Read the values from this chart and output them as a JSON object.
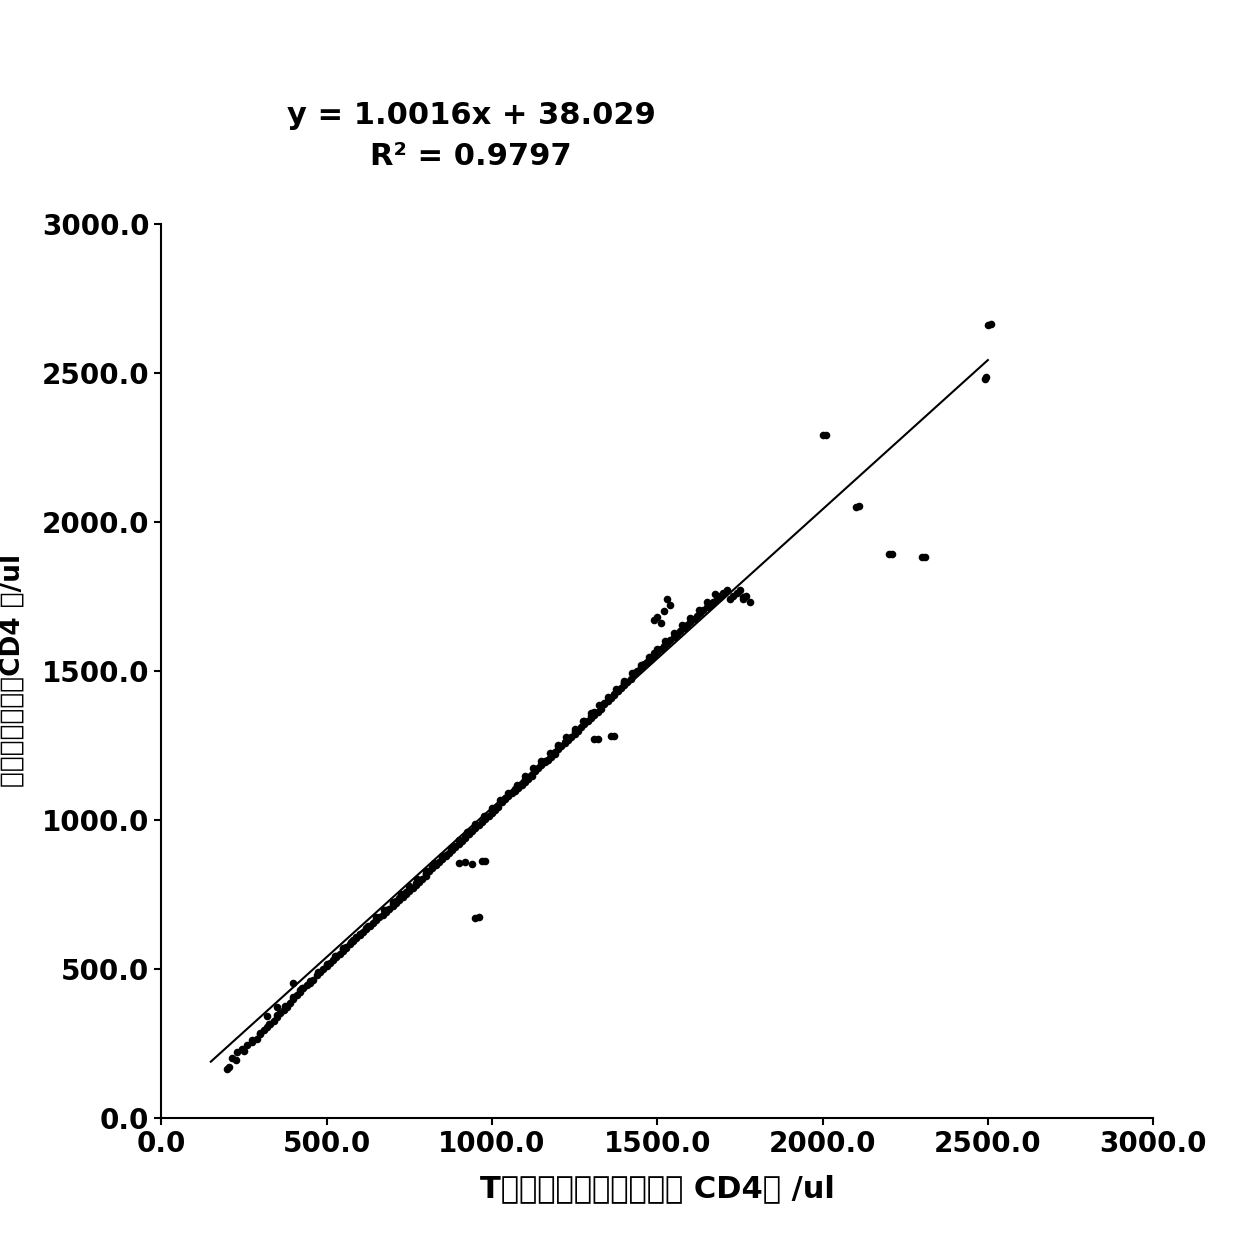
{
  "equation": "y = 1.0016x + 38.029",
  "r_squared": "R² = 0.9797",
  "slope": 1.0016,
  "intercept": 38.029,
  "xlabel": "T淋巴细胞试剂盒检测数 CD4个 /ul",
  "ylabel": "流式细胞检测数CD4 个/ul",
  "xlim": [
    0,
    3000
  ],
  "ylim": [
    0,
    3000
  ],
  "xticks": [
    0.0,
    500.0,
    1000.0,
    1500.0,
    2000.0,
    2500.0,
    3000.0
  ],
  "yticks": [
    0.0,
    500.0,
    1000.0,
    1500.0,
    2000.0,
    2500.0,
    3000.0
  ],
  "line_color": "#000000",
  "dot_color": "#000000",
  "background_color": "#ffffff",
  "scatter_points": [
    [
      200,
      165
    ],
    [
      215,
      200
    ],
    [
      230,
      220
    ],
    [
      245,
      230
    ],
    [
      260,
      245
    ],
    [
      275,
      260
    ],
    [
      290,
      265
    ],
    [
      300,
      280
    ],
    [
      310,
      295
    ],
    [
      320,
      305
    ],
    [
      330,
      315
    ],
    [
      340,
      325
    ],
    [
      350,
      338
    ],
    [
      360,
      350
    ],
    [
      370,
      362
    ],
    [
      380,
      372
    ],
    [
      390,
      385
    ],
    [
      400,
      398
    ],
    [
      410,
      412
    ],
    [
      420,
      422
    ],
    [
      430,
      434
    ],
    [
      440,
      444
    ],
    [
      450,
      453
    ],
    [
      460,
      463
    ],
    [
      470,
      478
    ],
    [
      480,
      488
    ],
    [
      490,
      498
    ],
    [
      500,
      508
    ],
    [
      510,
      518
    ],
    [
      520,
      528
    ],
    [
      530,
      538
    ],
    [
      540,
      548
    ],
    [
      550,
      558
    ],
    [
      560,
      568
    ],
    [
      570,
      582
    ],
    [
      580,
      592
    ],
    [
      590,
      602
    ],
    [
      600,
      612
    ],
    [
      610,
      622
    ],
    [
      620,
      632
    ],
    [
      630,
      642
    ],
    [
      640,
      652
    ],
    [
      650,
      662
    ],
    [
      660,
      672
    ],
    [
      670,
      682
    ],
    [
      680,
      692
    ],
    [
      690,
      702
    ],
    [
      700,
      712
    ],
    [
      710,
      722
    ],
    [
      720,
      732
    ],
    [
      730,
      742
    ],
    [
      740,
      752
    ],
    [
      750,
      762
    ],
    [
      760,
      772
    ],
    [
      770,
      782
    ],
    [
      780,
      792
    ],
    [
      790,
      802
    ],
    [
      800,
      818
    ],
    [
      810,
      828
    ],
    [
      820,
      838
    ],
    [
      830,
      848
    ],
    [
      840,
      858
    ],
    [
      850,
      868
    ],
    [
      860,
      878
    ],
    [
      870,
      888
    ],
    [
      880,
      898
    ],
    [
      890,
      908
    ],
    [
      900,
      918
    ],
    [
      910,
      928
    ],
    [
      920,
      938
    ],
    [
      930,
      952
    ],
    [
      940,
      962
    ],
    [
      950,
      972
    ],
    [
      960,
      982
    ],
    [
      970,
      992
    ],
    [
      980,
      1002
    ],
    [
      990,
      1012
    ],
    [
      1000,
      1022
    ],
    [
      1010,
      1032
    ],
    [
      1020,
      1042
    ],
    [
      1030,
      1058
    ],
    [
      1040,
      1068
    ],
    [
      1050,
      1078
    ],
    [
      1060,
      1088
    ],
    [
      1070,
      1098
    ],
    [
      1080,
      1108
    ],
    [
      1090,
      1118
    ],
    [
      1100,
      1128
    ],
    [
      1110,
      1138
    ],
    [
      1120,
      1148
    ],
    [
      1130,
      1162
    ],
    [
      1140,
      1172
    ],
    [
      1150,
      1182
    ],
    [
      1160,
      1192
    ],
    [
      1170,
      1202
    ],
    [
      1180,
      1212
    ],
    [
      1190,
      1222
    ],
    [
      1200,
      1238
    ],
    [
      1210,
      1248
    ],
    [
      1220,
      1258
    ],
    [
      1230,
      1268
    ],
    [
      1240,
      1278
    ],
    [
      1250,
      1288
    ],
    [
      1260,
      1298
    ],
    [
      1270,
      1312
    ],
    [
      1280,
      1322
    ],
    [
      1290,
      1332
    ],
    [
      1300,
      1342
    ],
    [
      1310,
      1352
    ],
    [
      1320,
      1362
    ],
    [
      1330,
      1372
    ],
    [
      1340,
      1388
    ],
    [
      1350,
      1398
    ],
    [
      1360,
      1408
    ],
    [
      1370,
      1418
    ],
    [
      1380,
      1432
    ],
    [
      1390,
      1442
    ],
    [
      1400,
      1452
    ],
    [
      1410,
      1462
    ],
    [
      1420,
      1472
    ],
    [
      1430,
      1488
    ],
    [
      1440,
      1498
    ],
    [
      1450,
      1508
    ],
    [
      1460,
      1518
    ],
    [
      1470,
      1528
    ],
    [
      1480,
      1538
    ],
    [
      1490,
      1552
    ],
    [
      1500,
      1562
    ],
    [
      1510,
      1572
    ],
    [
      1520,
      1582
    ],
    [
      1530,
      1592
    ],
    [
      1540,
      1602
    ],
    [
      1550,
      1612
    ],
    [
      1560,
      1622
    ],
    [
      1570,
      1632
    ],
    [
      1580,
      1642
    ],
    [
      1590,
      1652
    ],
    [
      1600,
      1662
    ],
    [
      1610,
      1672
    ],
    [
      1620,
      1682
    ],
    [
      1630,
      1692
    ],
    [
      1640,
      1702
    ],
    [
      1650,
      1712
    ],
    [
      1660,
      1722
    ],
    [
      1670,
      1732
    ],
    [
      1680,
      1742
    ],
    [
      1690,
      1752
    ],
    [
      1700,
      1762
    ],
    [
      1710,
      1772
    ],
    [
      1720,
      1742
    ],
    [
      1730,
      1752
    ],
    [
      1740,
      1762
    ],
    [
      1750,
      1772
    ],
    [
      1760,
      1748
    ],
    [
      900,
      855
    ],
    [
      920,
      858
    ],
    [
      940,
      850
    ],
    [
      950,
      670
    ],
    [
      960,
      672
    ],
    [
      970,
      860
    ],
    [
      980,
      862
    ],
    [
      1310,
      1270
    ],
    [
      1320,
      1272
    ],
    [
      1360,
      1280
    ],
    [
      1370,
      1282
    ],
    [
      1490,
      1670
    ],
    [
      1500,
      1680
    ],
    [
      1510,
      1660
    ],
    [
      1520,
      1700
    ],
    [
      1530,
      1740
    ],
    [
      1540,
      1720
    ],
    [
      1760,
      1740
    ],
    [
      1770,
      1750
    ],
    [
      1780,
      1730
    ],
    [
      2000,
      2290
    ],
    [
      2010,
      2292
    ],
    [
      2100,
      2050
    ],
    [
      2110,
      2052
    ],
    [
      2200,
      1890
    ],
    [
      2210,
      1892
    ],
    [
      2300,
      1880
    ],
    [
      2310,
      1882
    ],
    [
      2500,
      2660
    ],
    [
      2510,
      2662
    ],
    [
      2490,
      2480
    ],
    [
      2495,
      2485
    ],
    [
      400,
      452
    ],
    [
      420,
      430
    ],
    [
      350,
      372
    ],
    [
      320,
      342
    ],
    [
      600,
      618
    ],
    [
      580,
      598
    ],
    [
      550,
      568
    ],
    [
      700,
      718
    ],
    [
      720,
      738
    ],
    [
      750,
      768
    ],
    [
      800,
      822
    ],
    [
      820,
      842
    ],
    [
      850,
      872
    ],
    [
      1000,
      1028
    ],
    [
      1050,
      1082
    ],
    [
      1100,
      1132
    ],
    [
      1150,
      1188
    ],
    [
      1200,
      1248
    ],
    [
      1250,
      1292
    ],
    [
      1300,
      1348
    ],
    [
      1350,
      1402
    ],
    [
      1400,
      1458
    ],
    [
      1450,
      1512
    ],
    [
      500,
      512
    ],
    [
      530,
      542
    ],
    [
      560,
      572
    ],
    [
      590,
      608
    ],
    [
      620,
      638
    ],
    [
      650,
      668
    ],
    [
      680,
      698
    ],
    [
      710,
      728
    ],
    [
      740,
      758
    ],
    [
      770,
      788
    ],
    [
      800,
      812
    ],
    [
      830,
      852
    ],
    [
      860,
      882
    ],
    [
      890,
      912
    ],
    [
      920,
      942
    ],
    [
      950,
      978
    ],
    [
      980,
      1008
    ],
    [
      1010,
      1038
    ],
    [
      1040,
      1072
    ],
    [
      1070,
      1102
    ],
    [
      1100,
      1138
    ],
    [
      1130,
      1168
    ],
    [
      1160,
      1198
    ],
    [
      1190,
      1228
    ],
    [
      1220,
      1262
    ],
    [
      1250,
      1298
    ],
    [
      1280,
      1332
    ],
    [
      1310,
      1362
    ],
    [
      1340,
      1392
    ],
    [
      1370,
      1422
    ],
    [
      1400,
      1458
    ],
    [
      1430,
      1492
    ],
    [
      1460,
      1522
    ],
    [
      1490,
      1558
    ],
    [
      205,
      170
    ],
    [
      225,
      195
    ],
    [
      250,
      225
    ],
    [
      275,
      255
    ],
    [
      300,
      285
    ],
    [
      325,
      315
    ],
    [
      350,
      345
    ],
    [
      375,
      375
    ],
    [
      400,
      405
    ],
    [
      425,
      435
    ],
    [
      450,
      460
    ],
    [
      475,
      488
    ],
    [
      500,
      515
    ],
    [
      525,
      542
    ],
    [
      550,
      565
    ],
    [
      575,
      590
    ],
    [
      600,
      618
    ],
    [
      625,
      645
    ],
    [
      650,
      672
    ],
    [
      675,
      698
    ],
    [
      700,
      725
    ],
    [
      725,
      752
    ],
    [
      750,
      778
    ],
    [
      775,
      802
    ],
    [
      800,
      828
    ],
    [
      825,
      855
    ],
    [
      850,
      878
    ],
    [
      875,
      905
    ],
    [
      900,
      932
    ],
    [
      925,
      958
    ],
    [
      950,
      985
    ],
    [
      975,
      1012
    ],
    [
      1000,
      1038
    ],
    [
      1025,
      1065
    ],
    [
      1050,
      1090
    ],
    [
      1075,
      1118
    ],
    [
      1100,
      1145
    ],
    [
      1125,
      1172
    ],
    [
      1150,
      1198
    ],
    [
      1175,
      1225
    ],
    [
      1200,
      1252
    ],
    [
      1225,
      1278
    ],
    [
      1250,
      1305
    ],
    [
      1275,
      1332
    ],
    [
      1300,
      1358
    ],
    [
      1325,
      1385
    ],
    [
      1350,
      1412
    ],
    [
      1375,
      1438
    ],
    [
      1400,
      1465
    ],
    [
      1425,
      1492
    ],
    [
      1450,
      1518
    ],
    [
      1475,
      1545
    ],
    [
      1500,
      1572
    ],
    [
      1525,
      1598
    ],
    [
      1550,
      1625
    ],
    [
      1575,
      1652
    ],
    [
      1600,
      1678
    ],
    [
      1625,
      1705
    ],
    [
      1650,
      1732
    ],
    [
      1675,
      1758
    ]
  ]
}
